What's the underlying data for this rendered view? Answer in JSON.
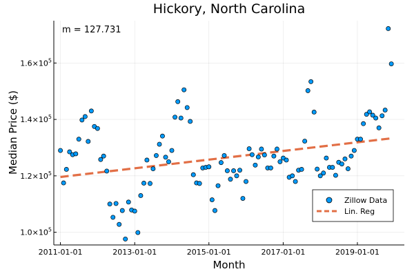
{
  "chart_data": {
    "type": "scatter",
    "title": "Hickory, North Carolina",
    "xlabel": "Month",
    "ylabel": "Median Price ($)",
    "annotation": "m = 127.731",
    "x_range": [
      "2010-10-28",
      "2020-04-07"
    ],
    "ylim": [
      95500,
      175000
    ],
    "x_ticks": [
      {
        "date": "2011-01-01",
        "label": "2011-01-01"
      },
      {
        "date": "2013-01-01",
        "label": "2013-01-01"
      },
      {
        "date": "2015-01-01",
        "label": "2015-01-01"
      },
      {
        "date": "2017-01-01",
        "label": "2017-01-01"
      },
      {
        "date": "2019-01-01",
        "label": "2019-01-01"
      }
    ],
    "y_ticks": [
      {
        "value": 100000,
        "mantissa": "1.0",
        "base": "×10",
        "exp": "5"
      },
      {
        "value": 120000,
        "mantissa": "1.2",
        "base": "×10",
        "exp": "5"
      },
      {
        "value": 140000,
        "mantissa": "1.4",
        "base": "×10",
        "exp": "5"
      },
      {
        "value": 160000,
        "mantissa": "1.6",
        "base": "×10",
        "exp": "5"
      }
    ],
    "grid": true,
    "legend_position": "bottom-right",
    "series": [
      {
        "name": "Zillow Data",
        "type": "scatter",
        "color": "#009AFA",
        "points": [
          [
            "2011-01-01",
            129000
          ],
          [
            "2011-02-01",
            117500
          ],
          [
            "2011-03-01",
            122300
          ],
          [
            "2011-04-01",
            128500
          ],
          [
            "2011-05-01",
            127500
          ],
          [
            "2011-06-01",
            127800
          ],
          [
            "2011-07-01",
            133000
          ],
          [
            "2011-08-01",
            139800
          ],
          [
            "2011-09-01",
            141000
          ],
          [
            "2011-10-01",
            132200
          ],
          [
            "2011-11-01",
            143000
          ],
          [
            "2011-12-01",
            137500
          ],
          [
            "2012-01-01",
            136800
          ],
          [
            "2012-02-01",
            125800
          ],
          [
            "2012-03-01",
            127000
          ],
          [
            "2012-04-01",
            121700
          ],
          [
            "2012-05-01",
            110000
          ],
          [
            "2012-06-01",
            105300
          ],
          [
            "2012-07-01",
            110200
          ],
          [
            "2012-08-01",
            102800
          ],
          [
            "2012-09-01",
            107700
          ],
          [
            "2012-10-01",
            97600
          ],
          [
            "2012-11-01",
            110700
          ],
          [
            "2012-12-01",
            107900
          ],
          [
            "2013-01-01",
            107500
          ],
          [
            "2013-02-01",
            99900
          ],
          [
            "2013-03-01",
            113000
          ],
          [
            "2013-04-01",
            117400
          ],
          [
            "2013-05-01",
            125600
          ],
          [
            "2013-06-01",
            117300
          ],
          [
            "2013-07-01",
            122500
          ],
          [
            "2013-08-01",
            127200
          ],
          [
            "2013-09-01",
            131200
          ],
          [
            "2013-10-01",
            134100
          ],
          [
            "2013-11-01",
            126600
          ],
          [
            "2013-12-01",
            125000
          ],
          [
            "2014-01-01",
            129000
          ],
          [
            "2014-02-01",
            140800
          ],
          [
            "2014-03-01",
            146300
          ],
          [
            "2014-04-01",
            140500
          ],
          [
            "2014-05-01",
            150500
          ],
          [
            "2014-06-01",
            144200
          ],
          [
            "2014-07-01",
            139300
          ],
          [
            "2014-08-01",
            120400
          ],
          [
            "2014-09-01",
            117500
          ],
          [
            "2014-10-01",
            117300
          ],
          [
            "2014-11-01",
            122800
          ],
          [
            "2014-12-01",
            123000
          ],
          [
            "2015-01-01",
            123200
          ],
          [
            "2015-02-01",
            111500
          ],
          [
            "2015-03-01",
            107700
          ],
          [
            "2015-04-01",
            116500
          ],
          [
            "2015-05-01",
            124700
          ],
          [
            "2015-06-01",
            127200
          ],
          [
            "2015-07-01",
            121800
          ],
          [
            "2015-08-01",
            118800
          ],
          [
            "2015-09-01",
            121800
          ],
          [
            "2015-10-01",
            120000
          ],
          [
            "2015-11-01",
            122000
          ],
          [
            "2015-12-01",
            112000
          ],
          [
            "2016-01-01",
            118000
          ],
          [
            "2016-02-01",
            129600
          ],
          [
            "2016-03-01",
            127500
          ],
          [
            "2016-04-01",
            123800
          ],
          [
            "2016-05-01",
            126700
          ],
          [
            "2016-06-01",
            129500
          ],
          [
            "2016-07-01",
            127400
          ],
          [
            "2016-08-01",
            122800
          ],
          [
            "2016-09-01",
            122800
          ],
          [
            "2016-10-01",
            127000
          ],
          [
            "2016-11-01",
            129500
          ],
          [
            "2016-12-01",
            125000
          ],
          [
            "2017-01-01",
            126300
          ],
          [
            "2017-02-01",
            125600
          ],
          [
            "2017-03-01",
            119500
          ],
          [
            "2017-04-01",
            120000
          ],
          [
            "2017-05-01",
            118000
          ],
          [
            "2017-06-01",
            122000
          ],
          [
            "2017-07-01",
            122300
          ],
          [
            "2017-08-01",
            132300
          ],
          [
            "2017-09-01",
            150200
          ],
          [
            "2017-10-01",
            153400
          ],
          [
            "2017-11-01",
            142600
          ],
          [
            "2017-12-01",
            122400
          ],
          [
            "2018-01-01",
            120000
          ],
          [
            "2018-02-01",
            121000
          ],
          [
            "2018-03-01",
            126300
          ],
          [
            "2018-04-01",
            123000
          ],
          [
            "2018-05-01",
            123000
          ],
          [
            "2018-06-01",
            120200
          ],
          [
            "2018-07-01",
            124800
          ],
          [
            "2018-08-01",
            124200
          ],
          [
            "2018-09-01",
            126000
          ],
          [
            "2018-10-01",
            122500
          ],
          [
            "2018-11-01",
            127000
          ],
          [
            "2018-12-01",
            129000
          ],
          [
            "2019-01-01",
            133000
          ],
          [
            "2019-02-01",
            133000
          ],
          [
            "2019-03-01",
            138500
          ],
          [
            "2019-04-01",
            141800
          ],
          [
            "2019-05-01",
            142700
          ],
          [
            "2019-06-01",
            141500
          ],
          [
            "2019-07-01",
            140500
          ],
          [
            "2019-08-01",
            137000
          ],
          [
            "2019-09-01",
            141300
          ],
          [
            "2019-10-01",
            143300
          ],
          [
            "2019-11-01",
            172200
          ],
          [
            "2019-12-01",
            159700
          ]
        ]
      },
      {
        "name": "Lin. Reg",
        "type": "line",
        "style": "dashed",
        "color": "#E26F46",
        "points": [
          [
            "2011-01-01",
            119600
          ],
          [
            "2019-12-01",
            133300
          ]
        ]
      }
    ]
  }
}
